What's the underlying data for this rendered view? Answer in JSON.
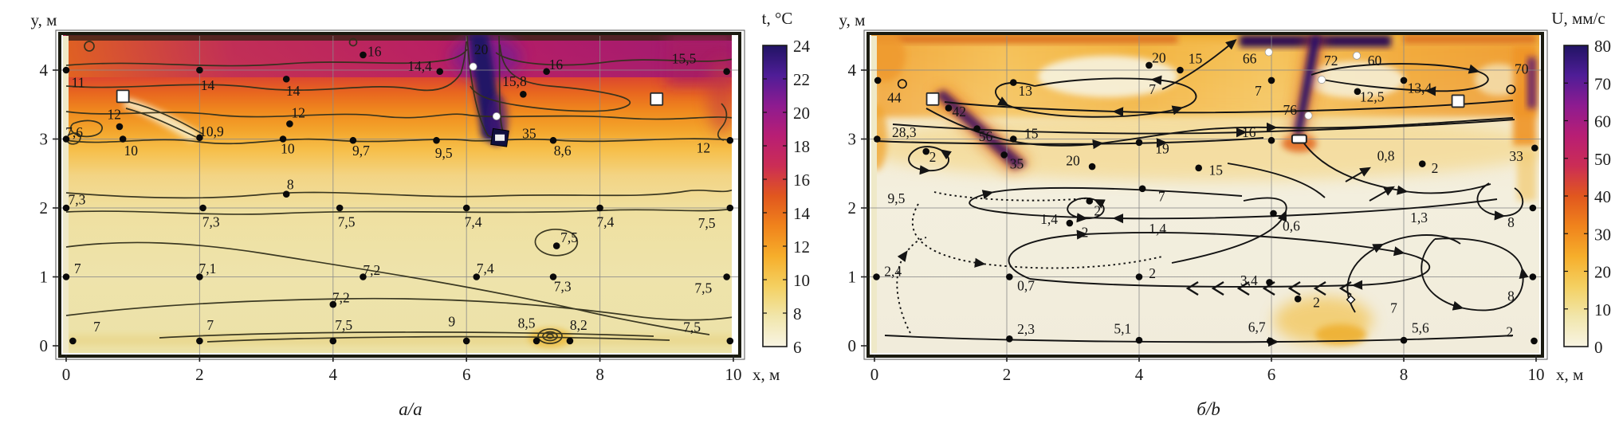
{
  "chart_data": [
    {
      "id": "a",
      "type": "heatmap",
      "field": "temperature contour map with measurement points",
      "caption": "a/a",
      "xlabel": "x, м",
      "ylabel": "y, м",
      "xlim": [
        0,
        10
      ],
      "ylim": [
        0,
        4.5
      ],
      "x_ticks": [
        "0",
        "2",
        "4",
        "6",
        "8",
        "10"
      ],
      "y_ticks": [
        "0",
        "1",
        "2",
        "3",
        "4"
      ],
      "grid": true,
      "colorbar": {
        "title": "t, °C",
        "ticks": [
          "24",
          "22",
          "20",
          "18",
          "16",
          "14",
          "12",
          "10",
          "8",
          "6"
        ]
      },
      "point_labels": [
        [
          "11",
          0.18,
          3.82
        ],
        [
          "14",
          2.12,
          3.78
        ],
        [
          "14",
          3.4,
          3.7
        ],
        [
          "16",
          4.62,
          4.27
        ],
        [
          "14,4",
          5.3,
          4.06
        ],
        [
          "20",
          6.22,
          4.3
        ],
        [
          "15,8",
          6.72,
          3.84
        ],
        [
          "16",
          7.34,
          4.08
        ],
        [
          "15,5",
          9.26,
          4.17
        ],
        [
          "12",
          0.72,
          3.36
        ],
        [
          "7,6",
          0.12,
          3.1
        ],
        [
          "10",
          0.97,
          2.83
        ],
        [
          "10,9",
          2.18,
          3.11
        ],
        [
          "12",
          3.48,
          3.38
        ],
        [
          "10",
          3.32,
          2.86
        ],
        [
          "9,7",
          4.42,
          2.83
        ],
        [
          "9,5",
          5.66,
          2.8
        ],
        [
          "35",
          6.94,
          3.08
        ],
        [
          "8,6",
          7.44,
          2.83
        ],
        [
          "12",
          9.55,
          2.87
        ],
        [
          "8",
          3.36,
          2.34
        ],
        [
          "7,3",
          0.16,
          2.12
        ],
        [
          "7,3",
          2.17,
          1.8
        ],
        [
          "7,5",
          4.2,
          1.8
        ],
        [
          "7,4",
          6.1,
          1.8
        ],
        [
          "7,4",
          8.08,
          1.8
        ],
        [
          "7,5",
          9.6,
          1.78
        ],
        [
          "7,5",
          7.54,
          1.57
        ],
        [
          "7",
          0.17,
          1.12
        ],
        [
          "7,1",
          2.12,
          1.12
        ],
        [
          "7,2",
          4.58,
          1.1
        ],
        [
          "7,4",
          6.28,
          1.12
        ],
        [
          "7,3",
          7.44,
          0.86
        ],
        [
          "7,5",
          9.55,
          0.84
        ],
        [
          "7,2",
          4.12,
          0.7
        ],
        [
          "7",
          0.46,
          0.28
        ],
        [
          "7",
          2.16,
          0.3
        ],
        [
          "7,5",
          4.16,
          0.3
        ],
        [
          "9",
          5.78,
          0.35
        ],
        [
          "8,5",
          6.9,
          0.33
        ],
        [
          "8,2",
          7.68,
          0.3
        ],
        [
          "7,5",
          9.38,
          0.27
        ]
      ],
      "dots": [
        [
          0,
          4
        ],
        [
          2,
          4
        ],
        [
          3.3,
          3.87
        ],
        [
          4.45,
          4.22
        ],
        [
          5.6,
          3.98
        ],
        [
          6.85,
          3.65
        ],
        [
          7.2,
          3.98
        ],
        [
          9.9,
          3.98
        ],
        [
          0.8,
          3.18
        ],
        [
          0,
          3
        ],
        [
          0.85,
          3
        ],
        [
          2,
          3.02
        ],
        [
          3.35,
          3.22
        ],
        [
          3.25,
          3
        ],
        [
          4.3,
          2.98
        ],
        [
          5.55,
          2.98
        ],
        [
          7.3,
          2.98
        ],
        [
          9.95,
          2.98
        ],
        [
          3.3,
          2.2
        ],
        [
          0,
          2
        ],
        [
          2.05,
          2
        ],
        [
          4.1,
          2
        ],
        [
          6,
          2
        ],
        [
          8,
          2
        ],
        [
          9.95,
          2
        ],
        [
          7.35,
          1.45
        ],
        [
          0,
          1
        ],
        [
          2,
          1
        ],
        [
          4.45,
          1
        ],
        [
          6.15,
          1
        ],
        [
          7.3,
          1
        ],
        [
          9.9,
          1
        ],
        [
          4,
          0.6
        ],
        [
          0.1,
          0.07
        ],
        [
          2,
          0.07
        ],
        [
          4,
          0.07
        ],
        [
          6,
          0.07
        ],
        [
          7.05,
          0.07
        ],
        [
          7.55,
          0.07
        ],
        [
          9.95,
          0.07
        ]
      ],
      "white_dots": [
        [
          6.1,
          4.05
        ],
        [
          6.45,
          3.33
        ]
      ],
      "open_circles": [],
      "diamonds": [],
      "sensor_squares": [
        [
          0.85,
          3.62
        ],
        [
          8.85,
          3.58
        ]
      ],
      "heater_box": [
        6.5,
        3.02
      ],
      "heater_slim": null
    },
    {
      "id": "b",
      "type": "heatmap",
      "field": "air speed map with streamlines and measurement points",
      "caption": "б/b",
      "xlabel": "x, м",
      "ylabel": "y, м",
      "xlim": [
        0,
        10
      ],
      "ylim": [
        0,
        4.5
      ],
      "x_ticks": [
        "0",
        "2",
        "4",
        "6",
        "8",
        "10"
      ],
      "y_ticks": [
        "0",
        "1",
        "2",
        "3",
        "4"
      ],
      "grid": true,
      "colorbar": {
        "title": "U, мм/с",
        "ticks": [
          "80",
          "70",
          "60",
          "50",
          "40",
          "30",
          "20",
          "10",
          "0"
        ]
      },
      "point_labels": [
        [
          "44",
          0.3,
          3.6
        ],
        [
          "13",
          2.28,
          3.7
        ],
        [
          "20",
          4.3,
          4.18
        ],
        [
          "15",
          4.85,
          4.17
        ],
        [
          "66",
          5.67,
          4.17
        ],
        [
          "72",
          6.9,
          4.14
        ],
        [
          "60",
          7.56,
          4.14
        ],
        [
          "70",
          9.78,
          4.02
        ],
        [
          "7",
          4.2,
          3.72
        ],
        [
          "7",
          5.8,
          3.7
        ],
        [
          "13,4",
          8.24,
          3.74
        ],
        [
          "12,5",
          7.52,
          3.61
        ],
        [
          "76",
          6.28,
          3.42
        ],
        [
          "42",
          1.28,
          3.4
        ],
        [
          "28,3",
          0.45,
          3.1
        ],
        [
          "56",
          1.68,
          3.04
        ],
        [
          "15",
          2.37,
          3.08
        ],
        [
          "35",
          2.15,
          2.64
        ],
        [
          "20",
          3.0,
          2.69
        ],
        [
          "19",
          4.35,
          2.86
        ],
        [
          "16",
          5.66,
          3.1
        ],
        [
          "9,5",
          0.33,
          2.14
        ],
        [
          "2",
          0.88,
          2.74
        ],
        [
          "2",
          3.37,
          1.96
        ],
        [
          "7",
          4.34,
          2.17
        ],
        [
          "15",
          5.16,
          2.55
        ],
        [
          "1,4",
          2.64,
          1.84
        ],
        [
          "2",
          3.18,
          1.65
        ],
        [
          "1,4",
          4.28,
          1.7
        ],
        [
          "0,6",
          6.3,
          1.74
        ],
        [
          "0,8",
          7.73,
          2.76
        ],
        [
          "2",
          8.47,
          2.58
        ],
        [
          "33",
          9.7,
          2.75
        ],
        [
          "1,3",
          8.23,
          1.86
        ],
        [
          "2,4",
          0.28,
          1.08
        ],
        [
          "0,7",
          2.29,
          0.87
        ],
        [
          "2",
          4.2,
          1.05
        ],
        [
          "3,4",
          5.66,
          0.95
        ],
        [
          "2",
          6.68,
          0.63
        ],
        [
          "7",
          7.85,
          0.55
        ],
        [
          "8",
          9.62,
          1.79
        ],
        [
          "8",
          9.62,
          0.72
        ],
        [
          "2,3",
          2.29,
          0.24
        ],
        [
          "5,1",
          3.75,
          0.25
        ],
        [
          "6,7",
          5.78,
          0.27
        ],
        [
          "5,6",
          8.25,
          0.26
        ],
        [
          "2",
          9.6,
          0.2
        ]
      ],
      "dots": [
        [
          0.05,
          3.85
        ],
        [
          2.1,
          3.82
        ],
        [
          4.15,
          4.07
        ],
        [
          4.62,
          4.0
        ],
        [
          6.0,
          3.85
        ],
        [
          8.0,
          3.85
        ],
        [
          7.3,
          3.69
        ],
        [
          1.12,
          3.45
        ],
        [
          0.04,
          3.0
        ],
        [
          1.55,
          3.15
        ],
        [
          2.1,
          3.0
        ],
        [
          1.96,
          2.77
        ],
        [
          3.29,
          2.6
        ],
        [
          4.0,
          2.95
        ],
        [
          6.0,
          2.98
        ],
        [
          0.78,
          2.82
        ],
        [
          3.25,
          2.1
        ],
        [
          4.05,
          2.28
        ],
        [
          4.9,
          2.58
        ],
        [
          8.28,
          2.64
        ],
        [
          9.98,
          2.87
        ],
        [
          0.03,
          1.0
        ],
        [
          2.04,
          1.0
        ],
        [
          4.0,
          1.0
        ],
        [
          6.03,
          1.92
        ],
        [
          2.95,
          1.78
        ],
        [
          5.97,
          0.92
        ],
        [
          6.4,
          0.68
        ],
        [
          9.95,
          2.0
        ],
        [
          9.95,
          1.0
        ],
        [
          2.04,
          0.1
        ],
        [
          4.0,
          0.08
        ],
        [
          5.98,
          0.07
        ],
        [
          8.0,
          0.08
        ],
        [
          9.97,
          0.07
        ]
      ],
      "white_dots": [
        [
          5.96,
          4.26
        ],
        [
          7.29,
          4.21
        ],
        [
          6.76,
          3.86
        ],
        [
          6.56,
          3.34
        ]
      ],
      "open_circles": [
        [
          0.42,
          3.8
        ],
        [
          9.62,
          3.72
        ]
      ],
      "diamonds": [
        [
          7.2,
          0.67
        ]
      ],
      "sensor_squares": [
        [
          0.88,
          3.58
        ],
        [
          8.82,
          3.55
        ]
      ],
      "heater_box": null,
      "heater_slim": [
        6.42,
        3.0
      ]
    }
  ],
  "colormap": [
    "#f8f4e3",
    "#f1e6ab",
    "#f4d061",
    "#f6ae2b",
    "#f0831c",
    "#e1571e",
    "#cb2d55",
    "#b81e74",
    "#8e1b90",
    "#4f1d97",
    "#211464"
  ]
}
